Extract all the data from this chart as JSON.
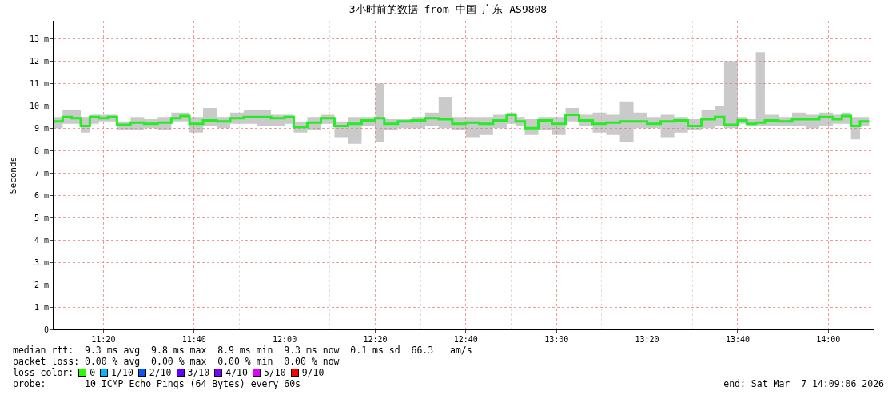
{
  "chart_data": {
    "type": "step",
    "title": "3小时前的数据 from 中国 广东 AS9808",
    "ylabel": "Seconds",
    "x": [
      "2026-03-07T11:09",
      "2026-03-07T11:11",
      "2026-03-07T11:13",
      "2026-03-07T11:15",
      "2026-03-07T11:17",
      "2026-03-07T11:19",
      "2026-03-07T11:21",
      "2026-03-07T11:23",
      "2026-03-07T11:26",
      "2026-03-07T11:29",
      "2026-03-07T11:32",
      "2026-03-07T11:35",
      "2026-03-07T11:37",
      "2026-03-07T11:39",
      "2026-03-07T11:42",
      "2026-03-07T11:45",
      "2026-03-07T11:48",
      "2026-03-07T11:51",
      "2026-03-07T11:54",
      "2026-03-07T11:57",
      "2026-03-07T12:00",
      "2026-03-07T12:02",
      "2026-03-07T12:05",
      "2026-03-07T12:08",
      "2026-03-07T12:11",
      "2026-03-07T12:14",
      "2026-03-07T12:17",
      "2026-03-07T12:20",
      "2026-03-07T12:22",
      "2026-03-07T12:25",
      "2026-03-07T12:28",
      "2026-03-07T12:31",
      "2026-03-07T12:34",
      "2026-03-07T12:37",
      "2026-03-07T12:40",
      "2026-03-07T12:43",
      "2026-03-07T12:46",
      "2026-03-07T12:49",
      "2026-03-07T12:51",
      "2026-03-07T12:53",
      "2026-03-07T12:56",
      "2026-03-07T12:59",
      "2026-03-07T13:02",
      "2026-03-07T13:05",
      "2026-03-07T13:08",
      "2026-03-07T13:11",
      "2026-03-07T13:14",
      "2026-03-07T13:17",
      "2026-03-07T13:20",
      "2026-03-07T13:23",
      "2026-03-07T13:26",
      "2026-03-07T13:29",
      "2026-03-07T13:32",
      "2026-03-07T13:35",
      "2026-03-07T13:37",
      "2026-03-07T13:40",
      "2026-03-07T13:42",
      "2026-03-07T13:44",
      "2026-03-07T13:46",
      "2026-03-07T13:49",
      "2026-03-07T13:52",
      "2026-03-07T13:55",
      "2026-03-07T13:58",
      "2026-03-07T14:01",
      "2026-03-07T14:03",
      "2026-03-07T14:05",
      "2026-03-07T14:07",
      "2026-03-07T14:09"
    ],
    "series": [
      {
        "color": "#22ee22",
        "values": [
          9.3,
          9.5,
          9.45,
          9.1,
          9.5,
          9.45,
          9.5,
          9.15,
          9.25,
          9.2,
          9.25,
          9.45,
          9.55,
          9.2,
          9.35,
          9.3,
          9.45,
          9.5,
          9.5,
          9.45,
          9.5,
          9.05,
          9.25,
          9.45,
          9.1,
          9.2,
          9.35,
          9.45,
          9.2,
          9.3,
          9.35,
          9.45,
          9.4,
          9.2,
          9.25,
          9.2,
          9.35,
          9.6,
          9.3,
          9.0,
          9.35,
          9.2,
          9.6,
          9.35,
          9.2,
          9.25,
          9.3,
          9.3,
          9.2,
          9.3,
          9.35,
          9.1,
          9.4,
          9.5,
          9.15,
          9.35,
          9.2,
          9.25,
          9.35,
          9.3,
          9.4,
          9.4,
          9.5,
          9.4,
          9.55,
          9.1,
          9.3,
          9.3
        ],
        "lower": [
          9.0,
          9.2,
          9.2,
          8.8,
          9.2,
          9.3,
          9.3,
          8.9,
          8.9,
          9.0,
          8.9,
          9.3,
          9.3,
          8.8,
          9.1,
          9.0,
          9.2,
          9.2,
          9.1,
          9.1,
          9.2,
          8.8,
          8.9,
          9.2,
          8.6,
          8.3,
          9.1,
          8.4,
          8.9,
          9.0,
          9.0,
          9.1,
          9.0,
          8.9,
          8.6,
          8.7,
          9.0,
          9.2,
          9.1,
          8.7,
          8.9,
          8.7,
          9.3,
          9.1,
          8.8,
          8.7,
          8.4,
          9.0,
          9.0,
          8.6,
          8.8,
          8.9,
          9.0,
          9.1,
          9.0,
          9.2,
          9.1,
          9.1,
          9.1,
          9.1,
          9.1,
          9.0,
          9.1,
          9.2,
          9.2,
          8.5,
          9.1,
          9.1
        ],
        "upper": [
          9.5,
          9.8,
          9.8,
          9.5,
          9.6,
          9.6,
          9.6,
          9.3,
          9.5,
          9.4,
          9.5,
          9.7,
          9.7,
          9.5,
          9.9,
          9.5,
          9.7,
          9.8,
          9.8,
          9.6,
          9.6,
          9.3,
          9.5,
          9.6,
          9.3,
          9.5,
          9.5,
          11.0,
          9.4,
          9.4,
          9.5,
          9.7,
          10.4,
          9.5,
          9.5,
          9.5,
          9.6,
          9.7,
          9.5,
          9.4,
          9.5,
          9.5,
          9.9,
          9.6,
          9.7,
          9.6,
          10.2,
          9.7,
          9.5,
          9.6,
          9.5,
          9.4,
          9.8,
          10.0,
          12.0,
          9.5,
          9.4,
          12.4,
          9.6,
          9.5,
          9.7,
          9.6,
          9.7,
          9.6,
          9.7,
          9.5,
          9.5,
          9.4
        ]
      }
    ],
    "xlim": [
      "2026-03-07T11:09",
      "2026-03-07T14:10"
    ],
    "xticks": [
      {
        "value": "2026-03-07T11:20",
        "label": "11:20"
      },
      {
        "value": "2026-03-07T11:40",
        "label": "11:40"
      },
      {
        "value": "2026-03-07T12:00",
        "label": "12:00"
      },
      {
        "value": "2026-03-07T12:20",
        "label": "12:20"
      },
      {
        "value": "2026-03-07T12:40",
        "label": "12:40"
      },
      {
        "value": "2026-03-07T13:00",
        "label": "13:00"
      },
      {
        "value": "2026-03-07T13:20",
        "label": "13:20"
      },
      {
        "value": "2026-03-07T13:40",
        "label": "13:40"
      },
      {
        "value": "2026-03-07T14:00",
        "label": "14:00"
      }
    ],
    "ylim": [
      0,
      13.8
    ],
    "yticks": [
      0,
      {
        "value": 1,
        "label": "1 m"
      },
      {
        "value": 2,
        "label": "2 m"
      },
      {
        "value": 3,
        "label": "3 m"
      },
      {
        "value": 4,
        "label": "4 m"
      },
      {
        "value": 5,
        "label": "5 m"
      },
      {
        "value": 6,
        "label": "6 m"
      },
      {
        "value": 7,
        "label": "7 m"
      },
      {
        "value": 8,
        "label": "8 m"
      },
      {
        "value": 9,
        "label": "9 m"
      },
      {
        "value": 10,
        "label": "10 m"
      },
      {
        "value": 11,
        "label": "11 m"
      },
      {
        "value": 12,
        "label": "12 m"
      },
      {
        "value": 13,
        "label": "13 m"
      }
    ],
    "grid": true,
    "marker": "none",
    "line_style": "solid",
    "annotations": [
      "median rtt:  9.3 ms avg  9.8 ms max  8.9 ms min  9.3 ms now  0.1 ms sd  66.3   am/s",
      "packet loss: 0.00 % avg  0.00 % max  0.00 % min  0.00 % now",
      "loss color:  0  1/10  2/10  3/10  4/10  5/10  9/10",
      "probe:       10 ICMP Echo Pings (64 Bytes) every 60s",
      "end: Sat Mar  7 14:09:06 2026"
    ]
  }
}
